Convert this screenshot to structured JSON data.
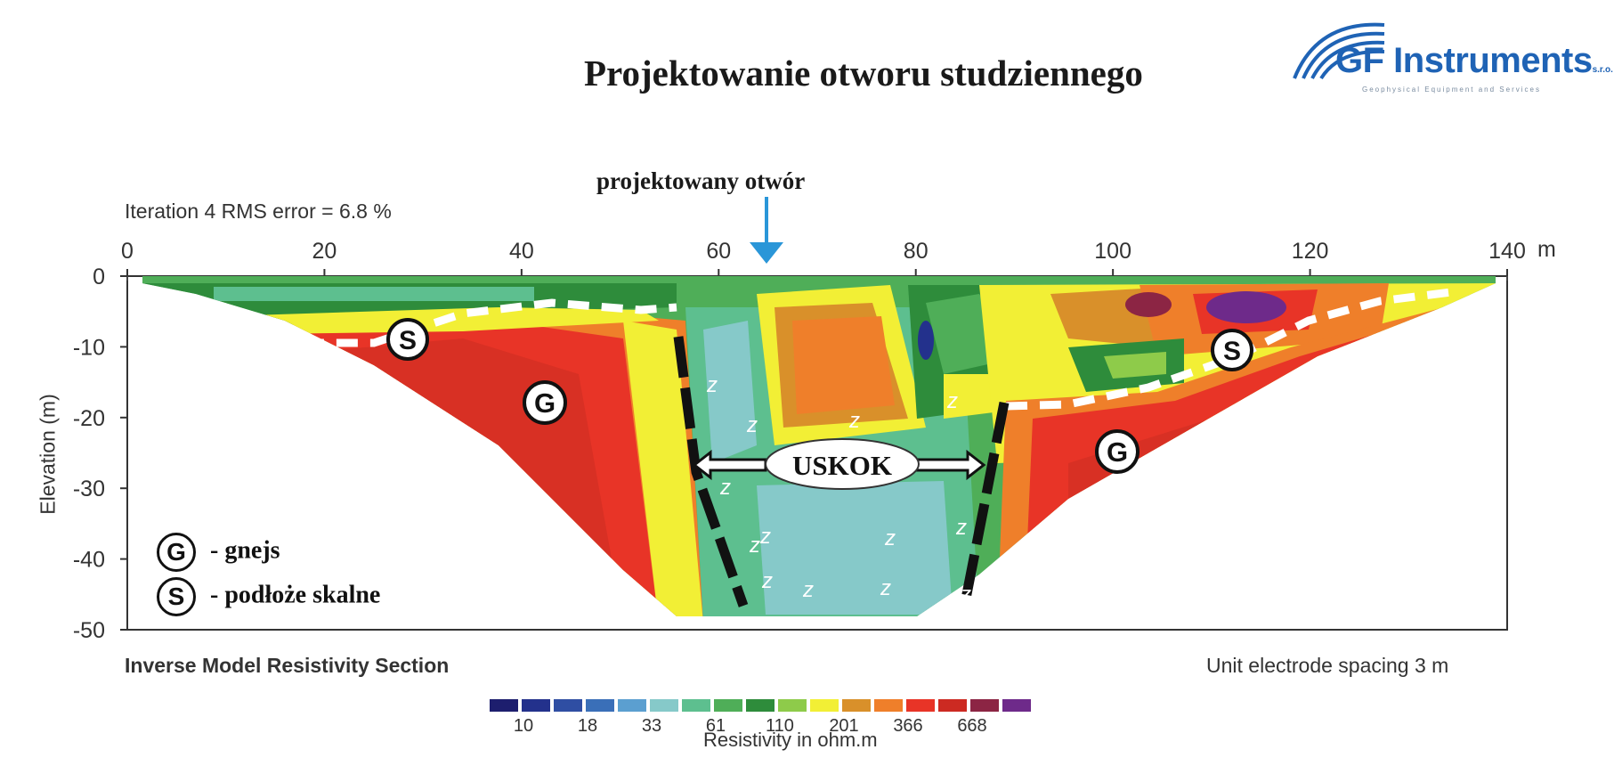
{
  "header": {
    "title": "Projektowanie otworu studziennego",
    "logo_name": "GF Instruments",
    "logo_suffix": "s.r.o.",
    "logo_tagline": "Geophysical Equipment and Services"
  },
  "annotations": {
    "iteration": "Iteration 4 RMS  error = 6.8 %",
    "borehole": "projektowany otwór",
    "fault": "USKOK",
    "gneiss_symbol": "G",
    "bedrock_symbol": "S",
    "groundwater_symbol": "z",
    "legend": [
      {
        "symbol": "G",
        "label": "- gnejs"
      },
      {
        "symbol": "S",
        "label": "-  podłoże skalne"
      }
    ]
  },
  "footer": {
    "left": "Inverse Model Resistivity Section",
    "right": "Unit electrode spacing 3 m"
  },
  "chart_data": {
    "type": "heatmap",
    "title": "Projektowanie otworu studziennego",
    "xlabel": "",
    "ylabel": "Elevation (m)",
    "x_unit": "m",
    "xlim": [
      0,
      140
    ],
    "ylim": [
      -50,
      0
    ],
    "x_ticks": [
      0,
      20,
      40,
      60,
      80,
      100,
      120,
      140
    ],
    "y_ticks": [
      0,
      -10,
      -20,
      -30,
      -40,
      -50
    ],
    "borehole_x": 64,
    "fault_zone_x": [
      56,
      88
    ],
    "colorbar": {
      "title": "Resistivity in ohm.m",
      "labels": [
        "10",
        "18",
        "33",
        "61",
        "110",
        "201",
        "366",
        "668"
      ],
      "colors": [
        "#1d1e6e",
        "#23318c",
        "#2f4ea3",
        "#3a6fb8",
        "#5b9fd0",
        "#86c9c9",
        "#5dbf8f",
        "#4fae58",
        "#2e8c3b",
        "#8ecb4a",
        "#f2ef35",
        "#d9902a",
        "#ef7f2a",
        "#e83427",
        "#cc2a22",
        "#8c2544",
        "#6e2a8a"
      ]
    }
  }
}
